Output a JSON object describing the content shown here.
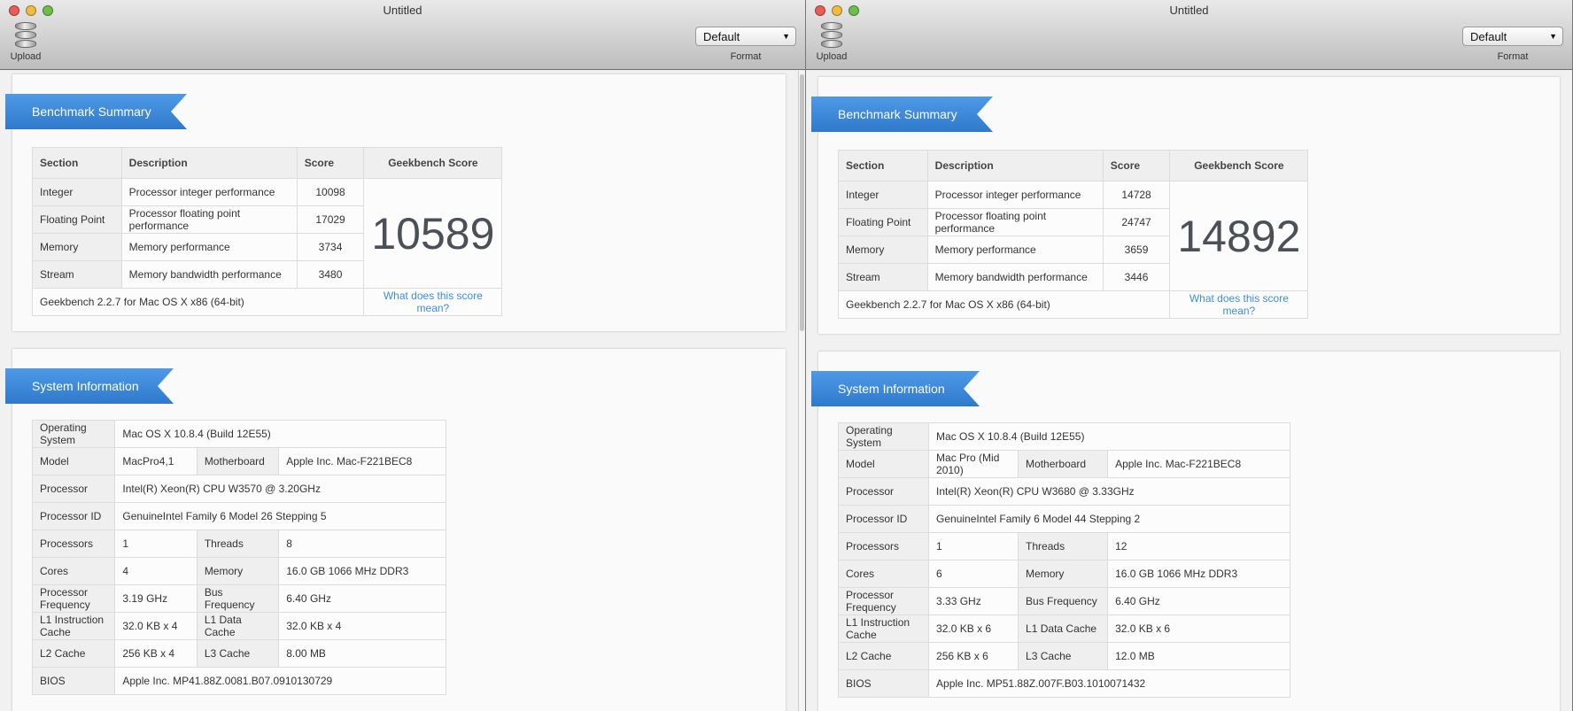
{
  "windows": [
    {
      "title": "Untitled",
      "toolbar": {
        "upload_label": "Upload",
        "format_label": "Format",
        "format_value": "Default"
      },
      "benchmark": {
        "heading": "Benchmark Summary",
        "columns": [
          "Section",
          "Description",
          "Score",
          "Geekbench Score"
        ],
        "rows": [
          {
            "section": "Integer",
            "description": "Processor integer performance",
            "score": "10098"
          },
          {
            "section": "Floating Point",
            "description": "Processor floating point performance",
            "score": "17029"
          },
          {
            "section": "Memory",
            "description": "Memory performance",
            "score": "3734"
          },
          {
            "section": "Stream",
            "description": "Memory bandwidth performance",
            "score": "3480"
          }
        ],
        "geekbench_score": "10589",
        "version": "Geekbench 2.2.7 for Mac OS X x86 (64-bit)",
        "link": "What does this score mean?"
      },
      "system": {
        "heading": "System Information",
        "rows": [
          [
            [
              "Operating System",
              "Mac OS X 10.8.4 (Build 12E55)"
            ]
          ],
          [
            [
              "Model",
              "MacPro4,1"
            ],
            [
              "Motherboard",
              "Apple Inc. Mac-F221BEC8"
            ]
          ],
          [
            [
              "Processor",
              "Intel(R) Xeon(R) CPU W3570 @ 3.20GHz"
            ]
          ],
          [
            [
              "Processor ID",
              "GenuineIntel Family 6 Model 26 Stepping 5"
            ]
          ],
          [
            [
              "Processors",
              "1"
            ],
            [
              "Threads",
              "8"
            ]
          ],
          [
            [
              "Cores",
              "4"
            ],
            [
              "Memory",
              "16.0 GB 1066 MHz DDR3"
            ]
          ],
          [
            [
              "Processor Frequency",
              "3.19 GHz"
            ],
            [
              "Bus Frequency",
              "6.40 GHz"
            ]
          ],
          [
            [
              "L1 Instruction Cache",
              "32.0 KB x 4"
            ],
            [
              "L1 Data Cache",
              "32.0 KB x 4"
            ]
          ],
          [
            [
              "L2 Cache",
              "256 KB x 4"
            ],
            [
              "L3 Cache",
              "8.00 MB"
            ]
          ],
          [
            [
              "BIOS",
              "Apple Inc. MP41.88Z.0081.B07.0910130729"
            ]
          ]
        ]
      }
    },
    {
      "title": "Untitled",
      "toolbar": {
        "upload_label": "Upload",
        "format_label": "Format",
        "format_value": "Default"
      },
      "benchmark": {
        "heading": "Benchmark Summary",
        "columns": [
          "Section",
          "Description",
          "Score",
          "Geekbench Score"
        ],
        "rows": [
          {
            "section": "Integer",
            "description": "Processor integer performance",
            "score": "14728"
          },
          {
            "section": "Floating Point",
            "description": "Processor floating point performance",
            "score": "24747"
          },
          {
            "section": "Memory",
            "description": "Memory performance",
            "score": "3659"
          },
          {
            "section": "Stream",
            "description": "Memory bandwidth performance",
            "score": "3446"
          }
        ],
        "geekbench_score": "14892",
        "version": "Geekbench 2.2.7 for Mac OS X x86 (64-bit)",
        "link": "What does this score mean?"
      },
      "system": {
        "heading": "System Information",
        "rows": [
          [
            [
              "Operating System",
              "Mac OS X 10.8.4 (Build 12E55)"
            ]
          ],
          [
            [
              "Model",
              "Mac Pro (Mid 2010)"
            ],
            [
              "Motherboard",
              "Apple Inc. Mac-F221BEC8"
            ]
          ],
          [
            [
              "Processor",
              "Intel(R) Xeon(R) CPU W3680 @ 3.33GHz"
            ]
          ],
          [
            [
              "Processor ID",
              "GenuineIntel Family 6 Model 44 Stepping 2"
            ]
          ],
          [
            [
              "Processors",
              "1"
            ],
            [
              "Threads",
              "12"
            ]
          ],
          [
            [
              "Cores",
              "6"
            ],
            [
              "Memory",
              "16.0 GB 1066 MHz DDR3"
            ]
          ],
          [
            [
              "Processor Frequency",
              "3.33 GHz"
            ],
            [
              "Bus Frequency",
              "6.40 GHz"
            ]
          ],
          [
            [
              "L1 Instruction Cache",
              "32.0 KB x 6"
            ],
            [
              "L1 Data Cache",
              "32.0 KB x 6"
            ]
          ],
          [
            [
              "L2 Cache",
              "256 KB x 6"
            ],
            [
              "L3 Cache",
              "12.0 MB"
            ]
          ],
          [
            [
              "BIOS",
              "Apple Inc. MP51.88Z.007F.B03.1010071432"
            ]
          ]
        ]
      }
    }
  ],
  "colors": {
    "accent": "#3a87dc",
    "link": "#3a8ee6",
    "close": "#ee5b55",
    "minimize": "#f3bb3c",
    "zoom": "#6cc04a"
  }
}
